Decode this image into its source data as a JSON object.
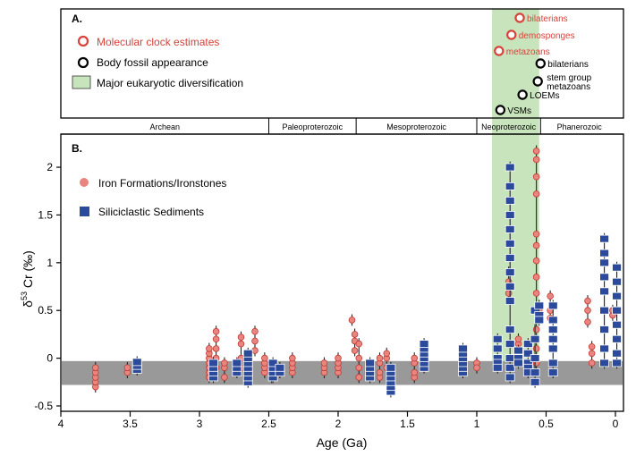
{
  "panel_a": {
    "label": "A.",
    "legend": {
      "molecular_clock": "Molecular clock estimates",
      "body_fossil": "Body fossil appearance",
      "diversification": "Major eukaryotic diversification"
    },
    "events": [
      {
        "label": "bilaterians",
        "kind": "molecular_clock",
        "age_ga": 0.69
      },
      {
        "label": "demosponges",
        "kind": "molecular_clock",
        "age_ga": 0.75
      },
      {
        "label": "metazoans",
        "kind": "molecular_clock",
        "age_ga": 0.84
      },
      {
        "label": "bilaterians",
        "kind": "body_fossil",
        "age_ga": 0.54
      },
      {
        "label": "stem group\nmetazoans",
        "kind": "body_fossil",
        "age_ga": 0.56
      },
      {
        "label": "LOEMs",
        "kind": "body_fossil",
        "age_ga": 0.67
      },
      {
        "label": "VSMs",
        "kind": "body_fossil",
        "age_ga": 0.83
      }
    ]
  },
  "eons": [
    {
      "name": "Archean",
      "start_ga": 4.0,
      "end_ga": 2.5
    },
    {
      "name": "Paleoproterozoic",
      "start_ga": 2.5,
      "end_ga": 1.87
    },
    {
      "name": "Mesoproterozoic",
      "start_ga": 1.87,
      "end_ga": 1.0
    },
    {
      "name": "Neoproterozoic",
      "start_ga": 1.0,
      "end_ga": 0.54
    },
    {
      "name": "Phanerozoic",
      "start_ga": 0.54,
      "end_ga": -0.02
    }
  ],
  "colors": {
    "iron": "#e8857f",
    "iron_stroke": "#c23b33",
    "silic": "#2b4a9c",
    "band": "#999999",
    "green": "#c8e4bc",
    "clock": "#d8423a"
  },
  "chart_data": {
    "type": "scatter",
    "panel_label": "B.",
    "xlabel": "Age (Ga)",
    "ylabel_prefix": "δ",
    "ylabel_sup": "53",
    "ylabel_suffix": " Cr (‰)",
    "xlim": [
      4,
      -0.02
    ],
    "ylim": [
      -0.5,
      2.3
    ],
    "x_ticks": [
      4,
      3.5,
      3,
      2.5,
      2,
      1.5,
      1,
      0.5,
      0
    ],
    "x_tick_labels": [
      "4",
      "3.5",
      "3",
      "2.5",
      "2",
      "1.5",
      "1",
      "0.5",
      "0"
    ],
    "y_ticks": [
      -0.5,
      0,
      0.5,
      1,
      1.5,
      2
    ],
    "y_tick_labels": [
      "-0.5",
      "0",
      "0.5",
      "1",
      "1.5",
      "2"
    ],
    "igneous_band": [
      -0.28,
      -0.03
    ],
    "diversification_window_ga": [
      0.89,
      0.55
    ],
    "legend": [
      "Iron Formations/Ironstones",
      "Siliciclastic Sediments"
    ],
    "series": [
      {
        "name": "Iron Formations/Ironstones",
        "marker": "circle",
        "points": [
          {
            "x": 3.75,
            "y": [
              -0.3,
              -0.25,
              -0.2,
              -0.15,
              -0.1
            ]
          },
          {
            "x": 3.52,
            "y": [
              -0.15,
              -0.1
            ]
          },
          {
            "x": 2.93,
            "y": [
              -0.2,
              -0.15,
              -0.1,
              -0.05,
              0.0,
              0.05,
              0.1
            ]
          },
          {
            "x": 2.88,
            "y": [
              -0.1,
              0.0,
              0.1,
              0.2,
              0.28
            ]
          },
          {
            "x": 2.82,
            "y": [
              -0.2,
              -0.1,
              -0.05
            ]
          },
          {
            "x": 2.7,
            "y": [
              -0.1,
              0.0,
              0.15,
              0.22
            ]
          },
          {
            "x": 2.6,
            "y": [
              0.08,
              0.18,
              0.28
            ]
          },
          {
            "x": 2.53,
            "y": [
              -0.15,
              -0.1,
              -0.05,
              0.0
            ]
          },
          {
            "x": 2.48,
            "y": [
              -0.2,
              -0.1
            ]
          },
          {
            "x": 2.33,
            "y": [
              -0.15,
              -0.1,
              -0.05,
              0.0
            ]
          },
          {
            "x": 2.1,
            "y": [
              -0.15,
              -0.1,
              -0.05
            ]
          },
          {
            "x": 2.0,
            "y": [
              -0.15,
              -0.1,
              -0.05,
              0.0
            ]
          },
          {
            "x": 1.9,
            "y": [
              0.4
            ]
          },
          {
            "x": 1.88,
            "y": [
              0.08,
              0.18,
              0.25
            ]
          },
          {
            "x": 1.85,
            "y": [
              -0.2,
              -0.1,
              0.0,
              0.15
            ]
          },
          {
            "x": 1.7,
            "y": [
              -0.2,
              -0.15,
              -0.05,
              0.0
            ]
          },
          {
            "x": 1.65,
            "y": [
              -0.1,
              0.0,
              0.05
            ]
          },
          {
            "x": 1.45,
            "y": [
              -0.2,
              -0.15,
              -0.05,
              0.0
            ]
          },
          {
            "x": 1.0,
            "y": [
              -0.05,
              -0.1
            ]
          },
          {
            "x": 0.77,
            "y": [
              0.68,
              0.8,
              0.9
            ]
          },
          {
            "x": 0.7,
            "y": [
              0.15,
              0.2
            ]
          },
          {
            "x": 0.57,
            "y": [
              2.17,
              2.08,
              1.9,
              1.72,
              1.3,
              1.18,
              1.02,
              0.85,
              0.68,
              0.3,
              0.1,
              -0.05
            ]
          },
          {
            "x": 0.55,
            "y": [
              0.5,
              0.55
            ]
          },
          {
            "x": 0.47,
            "y": [
              0.65,
              0.5,
              0.42
            ]
          },
          {
            "x": 0.2,
            "y": [
              0.6,
              0.5,
              0.38
            ]
          },
          {
            "x": 0.17,
            "y": [
              0.12,
              0.05,
              -0.05
            ]
          },
          {
            "x": 0.02,
            "y": [
              0.45,
              0.5
            ]
          }
        ]
      },
      {
        "name": "Siliciclastic Sediments",
        "marker": "square",
        "points": [
          {
            "x": 3.45,
            "y": [
              -0.12,
              -0.08,
              -0.04
            ]
          },
          {
            "x": 2.9,
            "y": [
              -0.2,
              -0.15,
              -0.1,
              -0.05
            ]
          },
          {
            "x": 2.73,
            "y": [
              -0.15,
              -0.1,
              -0.05
            ]
          },
          {
            "x": 2.65,
            "y": [
              -0.25,
              -0.2,
              -0.15,
              -0.1,
              -0.05,
              0.0,
              0.05
            ]
          },
          {
            "x": 2.47,
            "y": [
              -0.2,
              -0.15,
              -0.1,
              -0.05
            ]
          },
          {
            "x": 2.42,
            "y": [
              -0.15,
              -0.1
            ]
          },
          {
            "x": 1.77,
            "y": [
              -0.2,
              -0.15,
              -0.1,
              -0.05
            ]
          },
          {
            "x": 1.62,
            "y": [
              -0.35,
              -0.3,
              -0.25,
              -0.2,
              -0.15,
              -0.1
            ]
          },
          {
            "x": 1.38,
            "y": [
              -0.1,
              -0.05,
              0.0,
              0.05,
              0.1,
              0.15
            ]
          },
          {
            "x": 1.1,
            "y": [
              -0.15,
              -0.1,
              -0.05,
              0.0,
              0.05,
              0.1
            ]
          },
          {
            "x": 0.85,
            "y": [
              0.2,
              0.1,
              0.0,
              -0.05,
              -0.1
            ]
          },
          {
            "x": 0.76,
            "y": [
              2.0,
              1.8,
              1.65,
              1.5,
              1.35,
              1.2,
              1.05,
              0.9,
              0.75,
              0.6,
              0.3,
              0.15,
              0.0,
              -0.1,
              -0.2
            ]
          },
          {
            "x": 0.7,
            "y": [
              0.08,
              0.0,
              -0.05
            ]
          },
          {
            "x": 0.63,
            "y": [
              0.15,
              0.05,
              -0.05,
              -0.1,
              -0.15
            ]
          },
          {
            "x": 0.58,
            "y": [
              0.5,
              0.2,
              0.0,
              -0.15,
              -0.25
            ]
          },
          {
            "x": 0.55,
            "y": [
              0.55,
              0.45,
              0.4
            ]
          },
          {
            "x": 0.45,
            "y": [
              0.55,
              0.4,
              0.3,
              0.2,
              0.1,
              -0.05,
              -0.15
            ]
          },
          {
            "x": 0.08,
            "y": [
              1.25,
              1.1,
              1.0,
              0.85,
              0.7,
              0.5,
              0.3,
              0.1,
              -0.05
            ]
          },
          {
            "x": -0.01,
            "y": [
              0.95,
              0.8,
              0.65,
              0.5,
              0.35,
              0.2,
              0.05,
              -0.05
            ]
          }
        ]
      }
    ]
  }
}
